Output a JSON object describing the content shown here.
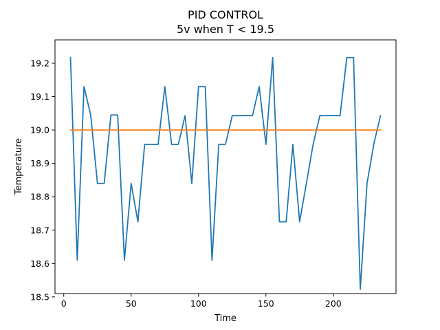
{
  "chart_data": {
    "type": "line",
    "title": "PID CONTROL",
    "subtitle": "5v when T < 19.5",
    "xlabel": "Time",
    "ylabel": "Temperature",
    "xlim": [
      -6.5,
      246.5
    ],
    "ylim": [
      18.51,
      19.27
    ],
    "xticks": [
      0,
      50,
      100,
      150,
      200
    ],
    "yticks": [
      18.5,
      18.6,
      18.7,
      18.8,
      18.9,
      19.0,
      19.1,
      19.2
    ],
    "ytick_labels": [
      "18.5",
      "18.6",
      "18.7",
      "18.8",
      "18.9",
      "19.0",
      "19.1",
      "19.2"
    ],
    "grid": false,
    "series": [
      {
        "color": "#1f77b4",
        "x": [
          5,
          10,
          15,
          20,
          25,
          30,
          35,
          40,
          45,
          50,
          55,
          60,
          65,
          70,
          75,
          80,
          85,
          90,
          95,
          100,
          105,
          110,
          115,
          120,
          125,
          130,
          135,
          140,
          145,
          150,
          155,
          160,
          165,
          170,
          175,
          180,
          185,
          190,
          195,
          200,
          205,
          210,
          215,
          220,
          225,
          230,
          235
        ],
        "y": [
          19.217,
          18.61,
          19.13,
          19.045,
          18.84,
          18.84,
          19.045,
          19.045,
          18.61,
          18.84,
          18.725,
          18.957,
          18.957,
          18.957,
          19.13,
          18.957,
          18.957,
          19.043,
          18.84,
          19.13,
          19.13,
          18.61,
          18.957,
          18.957,
          19.043,
          19.043,
          19.043,
          19.043,
          19.13,
          18.957,
          19.217,
          18.725,
          18.725,
          18.957,
          18.725,
          18.84,
          18.957,
          19.043,
          19.043,
          19.043,
          19.043,
          19.217,
          19.217,
          18.523,
          18.84,
          18.957,
          19.043
        ]
      },
      {
        "color": "#ff7f0e",
        "x": [
          5,
          235
        ],
        "y": [
          19.0,
          19.0
        ]
      }
    ]
  }
}
